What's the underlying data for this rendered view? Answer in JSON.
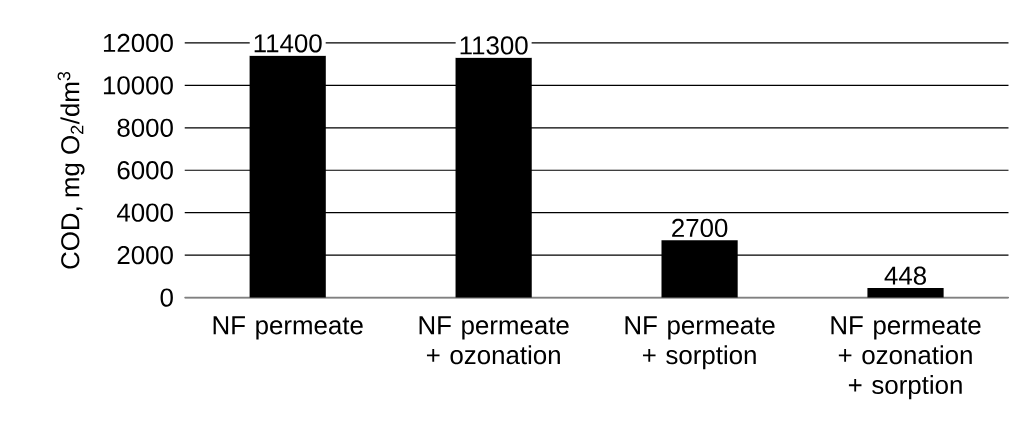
{
  "chart_data": {
    "type": "bar",
    "ylabel": "COD, mg O$_{2}$/dm$^{3}$",
    "categories": [
      "NF permeate",
      "NF permeate + ozonation",
      "NF permeate + sorption",
      "NF permeate + ozonation + sorption"
    ],
    "values": [
      11400,
      11300,
      2700,
      448
    ],
    "color": "#000000",
    "ylim": [
      0,
      12000
    ],
    "yticks": [
      0,
      2000,
      4000,
      6000,
      8000,
      10000,
      12000
    ],
    "grid": "y",
    "data_labels": true
  }
}
